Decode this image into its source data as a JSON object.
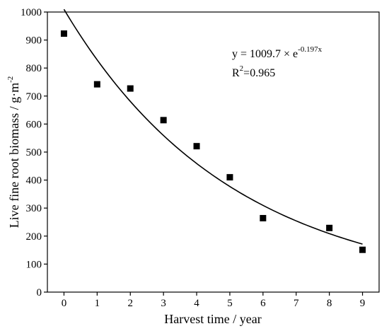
{
  "chart_data": {
    "type": "scatter",
    "x": [
      0,
      1,
      2,
      3,
      4,
      5,
      6,
      8,
      9
    ],
    "y": [
      923,
      742,
      727,
      614,
      521,
      410,
      264,
      229,
      151
    ],
    "fit": {
      "a": 1009.7,
      "b": -0.197,
      "x_range": [
        0,
        9
      ]
    },
    "xlabel": "Harvest time / year",
    "ylabel_main": "Live fine root biomass / g·m",
    "ylabel_sup": "-2",
    "xlim": [
      -0.5,
      9.5
    ],
    "ylim": [
      0,
      1000
    ],
    "xticks": [
      "0",
      "1",
      "2",
      "3",
      "4",
      "5",
      "6",
      "7",
      "8",
      "9"
    ],
    "yticks": [
      "0",
      "100",
      "200",
      "300",
      "400",
      "500",
      "600",
      "700",
      "800",
      "900",
      "1000"
    ],
    "xtick_values": [
      0,
      1,
      2,
      3,
      4,
      5,
      6,
      7,
      8,
      9
    ],
    "ytick_values": [
      0,
      100,
      200,
      300,
      400,
      500,
      600,
      700,
      800,
      900,
      1000
    ],
    "equation_main": "y = 1009.7 × e",
    "equation_sup": "-0.197x",
    "r2_prefix": "R",
    "r2_sup": "2",
    "r2_value": "=0.965",
    "grid": false,
    "colors": {
      "marker": "#000000",
      "line": "#000000"
    }
  }
}
